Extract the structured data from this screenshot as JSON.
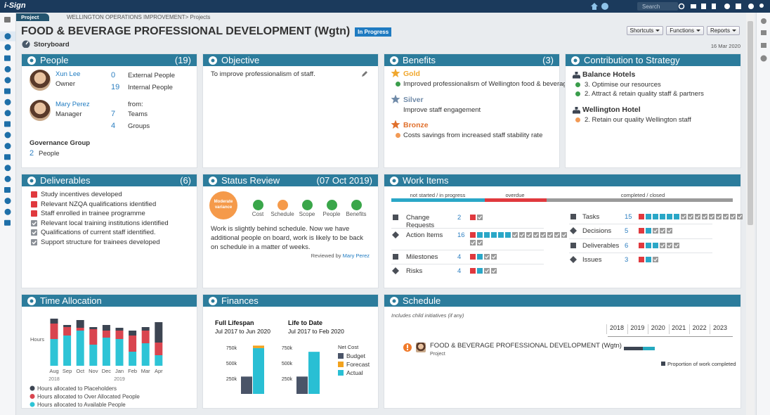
{
  "app": {
    "logo": "i-Sign",
    "tab": "Project",
    "breadcrumb": "WELLINGTON OPERATIONS IMPROVEMENT> Projects",
    "search_placeholder": "Search"
  },
  "header": {
    "title": "FOOD & BEVERAGE PROFESSIONAL DEVELOPMENT (Wgtn)",
    "status": "In Progress",
    "view": "Storyboard",
    "date": "16 Mar 2020",
    "buttons": [
      "Shortcuts",
      "Functions",
      "Reports"
    ]
  },
  "people": {
    "title": "People",
    "count": "(19)",
    "members": [
      {
        "name": "Xun Lee",
        "role": "Owner"
      },
      {
        "name": "Mary Perez",
        "role": "Manager"
      }
    ],
    "direct": [
      {
        "value": 0,
        "label": "External People"
      },
      {
        "value": 19,
        "label": "Internal People"
      }
    ],
    "from_label": "from:",
    "sources": [
      {
        "value": 7,
        "label": "Teams"
      },
      {
        "value": 4,
        "label": "Groups"
      }
    ],
    "governance": {
      "title": "Governance Group",
      "value": 2,
      "label": "People"
    }
  },
  "objective": {
    "title": "Objective",
    "text": "To improve professionalism of staff."
  },
  "benefits": {
    "title": "Benefits",
    "count": "(3)",
    "items": [
      {
        "level": "Gold",
        "color": "#f0a72d",
        "text": "Improved professionalism of Wellington food & beverag...",
        "dot": "#3a9d4b"
      },
      {
        "level": "Silver",
        "color": "#6f8aa8",
        "text": "Improve staff engagement"
      },
      {
        "level": "Bronze",
        "color": "#e0702c",
        "text": "Costs savings from increased staff stability rate",
        "dot": "#f29a55"
      }
    ]
  },
  "strategy": {
    "title": "Contribution to Strategy",
    "groups": [
      {
        "name": "Balance Hotels",
        "items": [
          {
            "text": "3. Optimise our resources",
            "dot": "#3a9d4b"
          },
          {
            "text": "2. Attract & retain quality staff & partners",
            "dot": "#3a9d4b"
          }
        ]
      },
      {
        "name": "Wellington Hotel",
        "items": [
          {
            "text": "2. Retain our quality Wellington staff",
            "dot": "#f29a55"
          }
        ]
      }
    ]
  },
  "deliverables": {
    "title": "Deliverables",
    "count": "(6)",
    "items": [
      {
        "text": "Study incentives developed",
        "done": false
      },
      {
        "text": "Relevant NZQA qualifications identified",
        "done": false
      },
      {
        "text": "Staff enrolled in trainee programme",
        "done": false
      },
      {
        "text": "Relevant local training institutions identified",
        "done": true
      },
      {
        "text": "Qualifications of current staff identified.",
        "done": true
      },
      {
        "text": "Support structure for trainees developed",
        "done": true
      }
    ]
  },
  "status_review": {
    "title": "Status Review",
    "date": "(07 Oct 2019)",
    "variance": "Moderate variance",
    "variance_color": "#f59a4a",
    "indicators": [
      {
        "label": "Cost",
        "color": "#3aa64a"
      },
      {
        "label": "Schedule",
        "color": "#f59a4a"
      },
      {
        "label": "Scope",
        "color": "#3aa64a"
      },
      {
        "label": "People",
        "color": "#3aa64a"
      },
      {
        "label": "Benefits",
        "color": "#3aa64a"
      }
    ],
    "comment": "Work is slightly behind schedule. Now we have additional people on board, work is likely to be back on schedule in a matter of weeks.",
    "reviewed_by": "Reviewed by",
    "reviewer": "Mary Perez"
  },
  "work_items": {
    "title": "Work Items",
    "states": [
      "not started / in progress",
      "overdue",
      "completed / closed"
    ],
    "columns": [
      [
        {
          "label": "Change Requests",
          "count": 2
        },
        {
          "label": "Action Items",
          "count": 16
        },
        {
          "label": "Milestones",
          "count": 4
        },
        {
          "label": "Risks",
          "count": 4
        }
      ],
      [
        {
          "label": "Tasks",
          "count": 15
        },
        {
          "label": "Decisions",
          "count": 5
        },
        {
          "label": "Deliverables",
          "count": 6
        },
        {
          "label": "Issues",
          "count": 3
        }
      ]
    ]
  },
  "time_allocation": {
    "title": "Time Allocation",
    "chart": {
      "type": "bar",
      "stacked": true,
      "y_label": "Hours",
      "groups": [
        {
          "label": "2018",
          "categories": [
            "Aug",
            "Sep",
            "Oct",
            "Nov",
            "Dec"
          ]
        },
        {
          "label": "2019",
          "categories": [
            "Jan",
            "Feb",
            "Mar",
            "Apr"
          ]
        }
      ],
      "ylim": [
        0,
        70
      ],
      "series": [
        {
          "name": "Hours allocated to Placeholders",
          "color": "#3d4552",
          "values": [
            7,
            3,
            11,
            3,
            8,
            4,
            7,
            5,
            29
          ]
        },
        {
          "name": "Hours allocated to Over Allocated People",
          "color": "#d9454f",
          "values": [
            22,
            12,
            4,
            22,
            10,
            12,
            23,
            18,
            18
          ]
        },
        {
          "name": "Hours allocated to Available People",
          "color": "#2ec4d6",
          "values": [
            38,
            43,
            50,
            30,
            40,
            38,
            20,
            32,
            15
          ]
        }
      ]
    }
  },
  "finances": {
    "title": "Finances",
    "chart": {
      "type": "bar",
      "legend_title": "Net Cost",
      "groups": [
        {
          "title": "Full Lifespan",
          "period": "Jul 2017 to Jun 2020"
        },
        {
          "title": "Life to Date",
          "period": "Jul 2017 to Feb 2020"
        }
      ],
      "ylim": [
        0,
        900000
      ],
      "yticks": [
        {
          "value": 250000,
          "label": "250k"
        },
        {
          "value": 500000,
          "label": "500k"
        },
        {
          "value": 750000,
          "label": "750k"
        }
      ],
      "series": [
        {
          "name": "Budget",
          "color": "#4a5468",
          "values": [
            280000,
            280000
          ]
        },
        {
          "name": "Forecast",
          "color": "#f2a21e",
          "values": [
            40000,
            0
          ]
        },
        {
          "name": "Actual",
          "color": "#29bfd4",
          "values": [
            740000,
            680000
          ]
        }
      ]
    }
  },
  "schedule": {
    "title": "Schedule",
    "note": "Includes child initiatives (if any)",
    "years": [
      "2018",
      "2019",
      "2020",
      "2021",
      "2022",
      "2023"
    ],
    "project": {
      "name": "FOOD & BEVERAGE PROFESSIONAL DEVELOPMENT (Wgtn)",
      "type": "Project"
    },
    "legend": "Proportion of work completed"
  }
}
